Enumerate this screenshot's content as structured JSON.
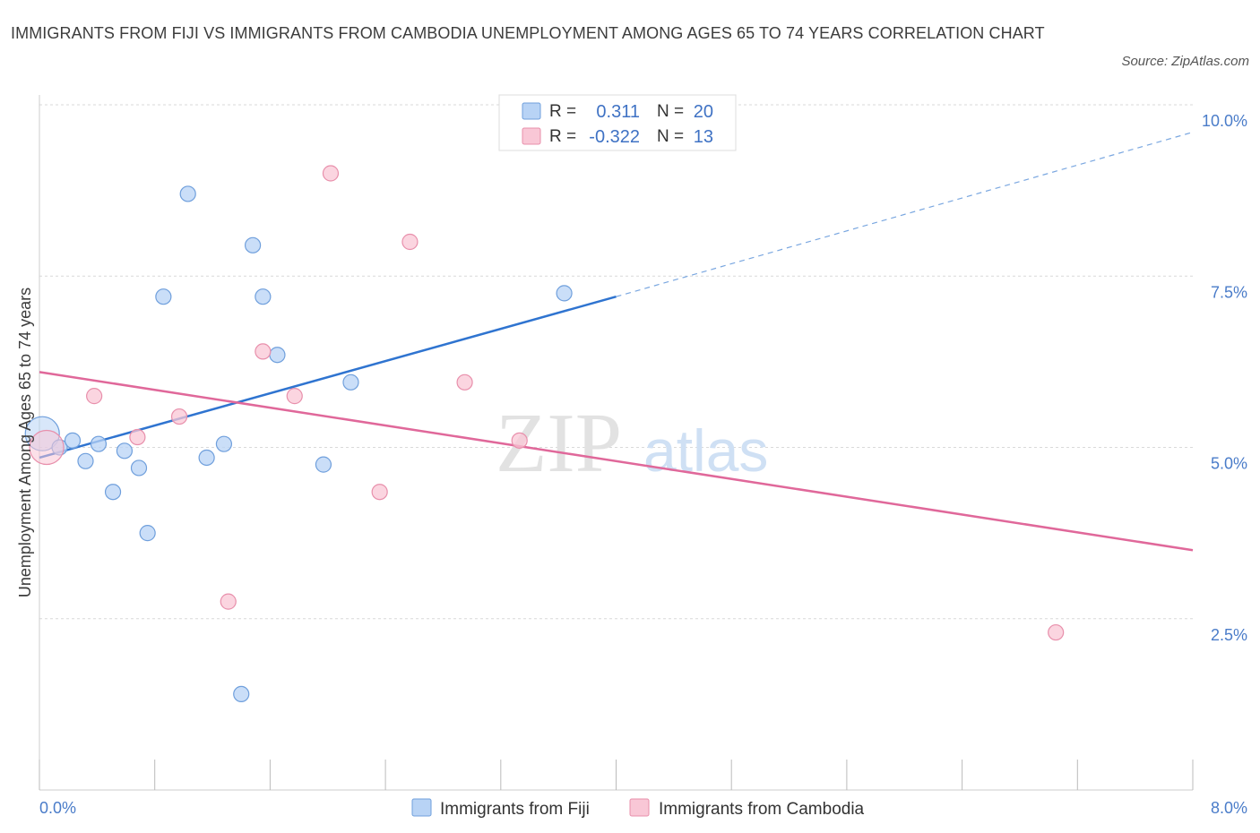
{
  "title": "IMMIGRANTS FROM FIJI VS IMMIGRANTS FROM CAMBODIA UNEMPLOYMENT AMONG AGES 65 TO 74 YEARS CORRELATION CHART",
  "source": "Source: ZipAtlas.com",
  "watermark": {
    "zip": "ZIP",
    "atlas": "atlas"
  },
  "legend": {
    "r_label": "R =",
    "n_label": "N =",
    "rows": [
      {
        "series": "Immigrants from Fiji",
        "r": "0.311",
        "n": "20"
      },
      {
        "series": "Immigrants from Cambodia",
        "r": "-0.322",
        "n": "13"
      }
    ]
  },
  "colors": {
    "fiji_fill": "#b8d3f5",
    "fiji_stroke": "#6f9fdc",
    "fiji_line": "#2f74d0",
    "cambodia_fill": "#f9c7d6",
    "cambodia_stroke": "#e88fab",
    "cambodia_line": "#e0689a",
    "grid": "#d9d9d9",
    "axis_text": "#4a7cc9"
  },
  "chart_data": {
    "type": "scatter",
    "title": "IMMIGRANTS FROM FIJI VS IMMIGRANTS FROM CAMBODIA UNEMPLOYMENT AMONG AGES 65 TO 74 YEARS CORRELATION CHART",
    "xlabel": "",
    "ylabel": "Unemployment Among Ages 65 to 74 years",
    "xlim": [
      0,
      8
    ],
    "ylim": [
      0,
      10
    ],
    "x_tick_labels": [
      "0.0%",
      "8.0%"
    ],
    "y_ticks": [
      {
        "value": 2.5,
        "label": "2.5%"
      },
      {
        "value": 5.0,
        "label": "5.0%"
      },
      {
        "value": 7.5,
        "label": "7.5%"
      },
      {
        "value": 10.0,
        "label": "10.0%"
      }
    ],
    "grid": true,
    "series": [
      {
        "name": "Immigrants from Fiji",
        "points": [
          {
            "x": 0.02,
            "y": 5.2,
            "big": true
          },
          {
            "x": 0.14,
            "y": 5.0
          },
          {
            "x": 0.23,
            "y": 5.1
          },
          {
            "x": 0.32,
            "y": 4.8
          },
          {
            "x": 0.41,
            "y": 5.05
          },
          {
            "x": 0.51,
            "y": 4.35
          },
          {
            "x": 0.59,
            "y": 4.95
          },
          {
            "x": 0.69,
            "y": 4.7
          },
          {
            "x": 0.75,
            "y": 3.75
          },
          {
            "x": 0.86,
            "y": 7.2
          },
          {
            "x": 1.03,
            "y": 8.7
          },
          {
            "x": 1.16,
            "y": 4.85
          },
          {
            "x": 1.28,
            "y": 5.05
          },
          {
            "x": 1.4,
            "y": 1.4
          },
          {
            "x": 1.48,
            "y": 7.95
          },
          {
            "x": 1.55,
            "y": 7.2
          },
          {
            "x": 1.65,
            "y": 6.35
          },
          {
            "x": 1.97,
            "y": 4.75
          },
          {
            "x": 2.16,
            "y": 5.95
          },
          {
            "x": 3.64,
            "y": 7.25
          }
        ],
        "trend": {
          "x0": 0.0,
          "y0": 4.85,
          "x1": 4.0,
          "y1": 7.2,
          "x_dash_end": 8.0,
          "y_dash_end": 9.6
        }
      },
      {
        "name": "Immigrants from Cambodia",
        "points": [
          {
            "x": 0.05,
            "y": 5.0,
            "big": true
          },
          {
            "x": 0.38,
            "y": 5.75
          },
          {
            "x": 0.68,
            "y": 5.15
          },
          {
            "x": 0.97,
            "y": 5.45
          },
          {
            "x": 1.31,
            "y": 2.75
          },
          {
            "x": 1.55,
            "y": 6.4
          },
          {
            "x": 1.77,
            "y": 5.75
          },
          {
            "x": 2.02,
            "y": 9.0
          },
          {
            "x": 2.36,
            "y": 4.35
          },
          {
            "x": 2.57,
            "y": 8.0
          },
          {
            "x": 2.95,
            "y": 5.95
          },
          {
            "x": 3.33,
            "y": 5.1
          },
          {
            "x": 7.05,
            "y": 2.3
          }
        ],
        "trend": {
          "x0": 0.0,
          "y0": 6.1,
          "x1": 8.0,
          "y1": 3.5
        }
      }
    ]
  }
}
